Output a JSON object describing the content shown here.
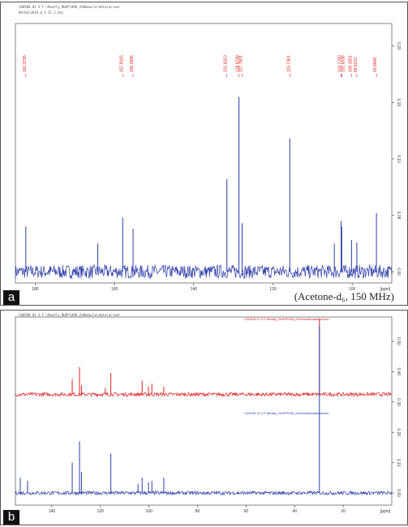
{
  "figure": {
    "panel_a": {
      "letter": "a",
      "header_line1": "C00508 01 4 F:\\Beatly_NUEP\\098_ZeNomaila\\data\\ac\\nmr",
      "header_line2": "09/03/2018 0 4.51 2 Hzz",
      "solvent_note": "(Acetone-d₆, 150 MHz)",
      "x_axis_unit": "[ppm]"
    },
    "panel_b": {
      "letter": "b",
      "header_line1": "C00508 01 4 F:\\Beatly_NUEP\\098_ZeNomaila\\data\\ac\\nmr",
      "x_axis_unit": "[ppm]",
      "trace_label_red": "C00508 13 4 F:\\Beatly_NUEP\\098_ZeNomaila\\data\\ac\\nmr",
      "trace_label_blue": "C00508 13 4 F:\\Beatly_NUEP\\098_ZeNomaila\\data\\ac\\nmr"
    },
    "colors": {
      "spectrum_blue": "#2b3da8",
      "peak_red": "#e02020",
      "axis": "#333333"
    }
  },
  "chart_data": [
    {
      "type": "line",
      "panel": "a",
      "x_unit": "[ppm]",
      "xlim": [
        185,
        90
      ],
      "x_reversed": true,
      "ylim": [
        -0.01,
        0.22
      ],
      "x_ticks": [
        180,
        160,
        140,
        120,
        100
      ],
      "y_ticks": [
        0.0,
        0.05,
        0.1,
        0.15,
        0.2
      ],
      "peak_labels": [
        "182.3795",
        "157.9165",
        "155.2996",
        "131.6213",
        "128.5798",
        "127.7801",
        "115.7361",
        "102.7790",
        "102.6336",
        "100.1551",
        "98.8213",
        "93.8668"
      ],
      "series": [
        {
          "color": "#2b3da8",
          "peaks": [
            {
              "ppm": 182.38,
              "intensity": 0.04
            },
            {
              "ppm": 164.2,
              "intensity": 0.025
            },
            {
              "ppm": 157.92,
              "intensity": 0.048
            },
            {
              "ppm": 155.3,
              "intensity": 0.038
            },
            {
              "ppm": 131.62,
              "intensity": 0.082
            },
            {
              "ppm": 128.58,
              "intensity": 0.155
            },
            {
              "ppm": 127.78,
              "intensity": 0.043
            },
            {
              "ppm": 115.74,
              "intensity": 0.118
            },
            {
              "ppm": 104.5,
              "intensity": 0.025
            },
            {
              "ppm": 102.78,
              "intensity": 0.045
            },
            {
              "ppm": 102.63,
              "intensity": 0.04
            },
            {
              "ppm": 100.16,
              "intensity": 0.028
            },
            {
              "ppm": 98.82,
              "intensity": 0.026
            },
            {
              "ppm": 93.87,
              "intensity": 0.052
            }
          ]
        }
      ]
    },
    {
      "type": "line",
      "panel": "b",
      "x_unit": "[ppm]",
      "xlim": [
        155,
        0
      ],
      "x_reversed": true,
      "ylim": [
        -0.04,
        0.58
      ],
      "x_ticks": [
        140,
        120,
        100,
        80,
        60,
        40,
        20
      ],
      "y_ticks": [
        0.0,
        0.1,
        0.2,
        0.3,
        0.4,
        0.5
      ],
      "series": [
        {
          "color": "#e02020",
          "baseline": 0.325,
          "peaks": [
            {
              "ppm": 131.6,
              "intensity": 0.05
            },
            {
              "ppm": 128.6,
              "intensity": 0.09
            },
            {
              "ppm": 127.8,
              "intensity": 0.03
            },
            {
              "ppm": 118.0,
              "intensity": 0.02
            },
            {
              "ppm": 115.7,
              "intensity": 0.07
            },
            {
              "ppm": 102.8,
              "intensity": 0.045
            },
            {
              "ppm": 100.2,
              "intensity": 0.025
            },
            {
              "ppm": 98.8,
              "intensity": 0.035
            },
            {
              "ppm": 93.9,
              "intensity": 0.025
            },
            {
              "ppm": 29.8,
              "intensity": 0.25
            }
          ]
        },
        {
          "color": "#2b3da8",
          "baseline": 0.0,
          "peaks": [
            {
              "ppm": 153.0,
              "intensity": 0.05
            },
            {
              "ppm": 150.0,
              "intensity": 0.04
            },
            {
              "ppm": 131.6,
              "intensity": 0.1
            },
            {
              "ppm": 128.6,
              "intensity": 0.17
            },
            {
              "ppm": 127.8,
              "intensity": 0.07
            },
            {
              "ppm": 115.7,
              "intensity": 0.13
            },
            {
              "ppm": 104.5,
              "intensity": 0.03
            },
            {
              "ppm": 102.8,
              "intensity": 0.05
            },
            {
              "ppm": 100.2,
              "intensity": 0.035
            },
            {
              "ppm": 98.8,
              "intensity": 0.04
            },
            {
              "ppm": 93.9,
              "intensity": 0.05
            },
            {
              "ppm": 29.8,
              "intensity": 0.55
            }
          ]
        }
      ]
    }
  ]
}
